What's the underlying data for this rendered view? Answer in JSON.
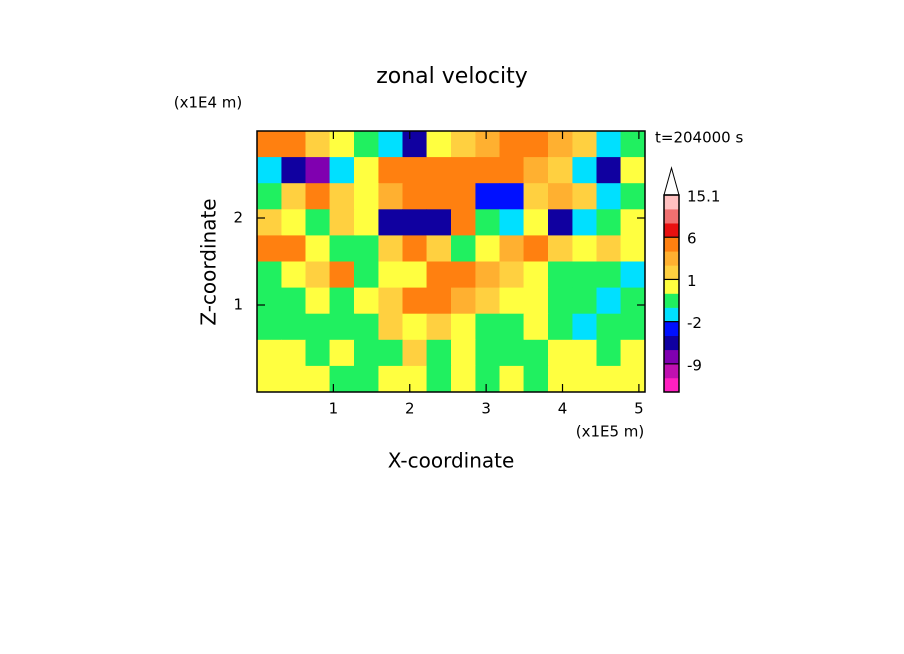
{
  "chart_data": {
    "type": "contour",
    "title": "zonal velocity",
    "x_label": "X-coordinate",
    "y_label": "Z-coordinate",
    "x_unit": "(x1E5 m)",
    "y_unit": "(x1E4 m)",
    "annotation": "t=204000 s",
    "xlim": [
      0,
      5.08
    ],
    "ylim": [
      0,
      3
    ],
    "xticks": [
      1,
      2,
      3,
      4,
      5
    ],
    "yticks": [
      1,
      2
    ],
    "x": [
      0.16,
      0.48,
      0.79,
      1.11,
      1.43,
      1.75,
      2.06,
      2.38,
      2.7,
      3.02,
      3.33,
      3.65,
      3.97,
      4.29,
      4.6,
      4.92
    ],
    "y": [
      2.85,
      2.55,
      2.25,
      1.95,
      1.65,
      1.35,
      1.05,
      0.75,
      0.45,
      0.15
    ],
    "z": [
      [
        4,
        3,
        1.5,
        0.5,
        -0.5,
        -1.5,
        -5,
        0.5,
        1.5,
        2.5,
        4,
        4,
        2,
        1.5,
        -1.5,
        -0.5
      ],
      [
        -1.5,
        -6,
        -7,
        -1.5,
        0.5,
        4,
        5,
        5,
        4.5,
        4,
        4,
        2.5,
        1.5,
        -2,
        -5,
        0.5
      ],
      [
        -0.5,
        1,
        3.5,
        1.5,
        0.5,
        2.5,
        4,
        5,
        4,
        -4,
        -3,
        1.5,
        2.5,
        1.5,
        -1.5,
        -1
      ],
      [
        1.5,
        0.5,
        -0.5,
        1.5,
        0.5,
        -5,
        -6,
        -5,
        3.5,
        -0.5,
        -1.5,
        0.5,
        -5,
        -1.5,
        -0.5,
        0.5
      ],
      [
        4,
        3,
        0.5,
        -0.5,
        -1,
        1.5,
        4,
        1.5,
        -0.5,
        0.5,
        2.5,
        3,
        1.5,
        0.5,
        1.5,
        0.5
      ],
      [
        -0.5,
        0.5,
        1.5,
        3.5,
        -0.5,
        0.5,
        0.5,
        3.5,
        4,
        2.5,
        1.5,
        0.5,
        -0.5,
        -0.5,
        -0.5,
        -1.5
      ],
      [
        -0.5,
        -0.5,
        0.5,
        -0.5,
        0.5,
        1.5,
        3.5,
        4,
        2.5,
        1.5,
        0.5,
        0.5,
        -0.5,
        -0.5,
        -1.5,
        -0.5
      ],
      [
        -0.5,
        -0.5,
        -0.5,
        -0.5,
        -0.5,
        1.5,
        0.5,
        1.5,
        0.5,
        -0.5,
        -0.5,
        0.5,
        -0.5,
        -1.5,
        -0.5,
        -0.5
      ],
      [
        0.5,
        0.5,
        -0.5,
        0.5,
        -0.5,
        -0.5,
        1.5,
        -0.5,
        0.5,
        -0.5,
        -0.5,
        -0.5,
        0.5,
        0.5,
        -0.5,
        0.5
      ],
      [
        0.5,
        0.5,
        0.5,
        -0.5,
        -0.5,
        0.5,
        0.5,
        -0.5,
        0.5,
        -0.5,
        0.5,
        -0.5,
        0.5,
        0.5,
        0.5,
        0.5
      ]
    ],
    "colorbar": {
      "levels": [
        -12,
        -9,
        -6,
        -4,
        -2,
        -1,
        0,
        1,
        2,
        3,
        6,
        9,
        12,
        15.1
      ],
      "colors": [
        "#ff20c0",
        "#c010b0",
        "#8000b0",
        "#1000a0",
        "#0010ff",
        "#00e0ff",
        "#20f060",
        "#ffff40",
        "#ffd040",
        "#ffb030",
        "#ff8010",
        "#e81010",
        "#f07070",
        "#ffc0c0",
        "#ffffff"
      ],
      "ticks": [
        15.1,
        6,
        1,
        -2,
        -9
      ]
    }
  }
}
